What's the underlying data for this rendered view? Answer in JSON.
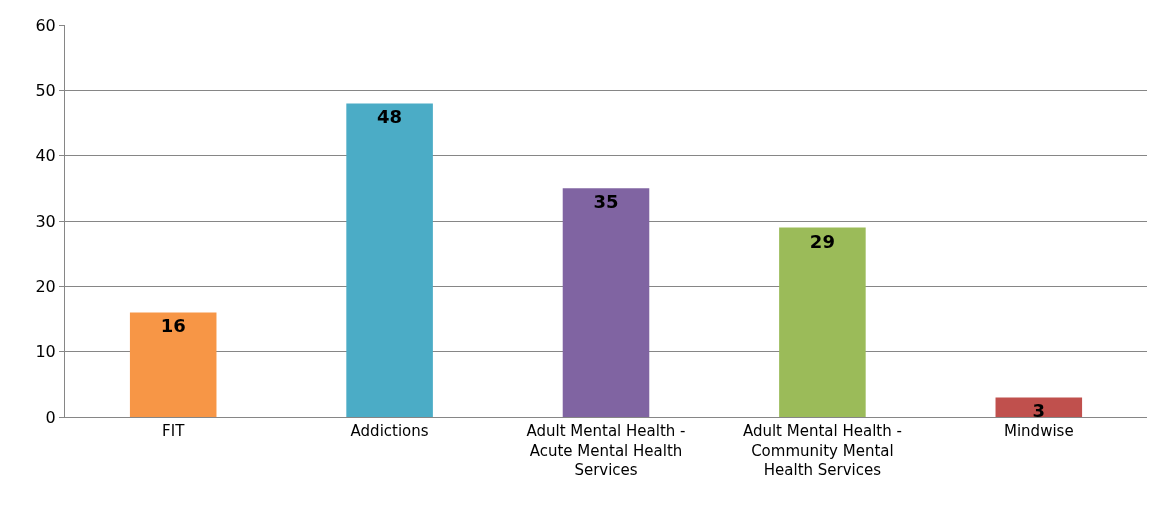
{
  "chart_data": {
    "type": "bar",
    "categories": [
      "FIT",
      "Addictions",
      "Adult Mental Health - Acute Mental Health Services",
      "Adult Mental Health - Community Mental Health Services",
      "Mindwise"
    ],
    "values": [
      16,
      48,
      35,
      29,
      3
    ],
    "colors": [
      "#f79646",
      "#4bacc6",
      "#8064a2",
      "#9bbb59",
      "#c0504d"
    ],
    "ylim": [
      0,
      60
    ],
    "yticks": [
      0,
      10,
      20,
      30,
      40,
      50,
      60
    ],
    "grid": "y",
    "data_labels": true
  }
}
